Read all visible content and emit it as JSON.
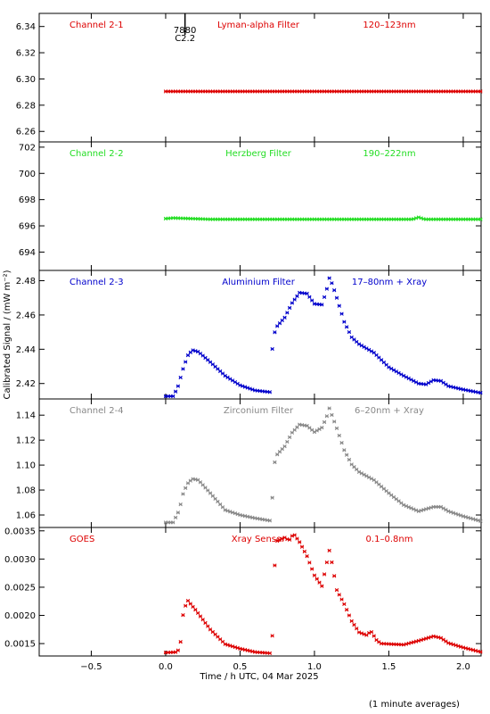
{
  "chart_data": {
    "type": "scatter",
    "xlabel": "Time / h UTC, 04 Mar 2025",
    "ylabel": "Calibrated Signal / (mW m⁻²)",
    "footnote": "(1 minute averages)",
    "xlim": [
      -0.85,
      2.12
    ],
    "xticks": [
      -0.5,
      0.0,
      0.5,
      1.0,
      1.5,
      2.0
    ],
    "xtick_labels": [
      "−0.5",
      "0.0",
      "0.5",
      "1.0",
      "1.5",
      "2.0"
    ],
    "marker_annotation": {
      "x": 0.13,
      "lines": [
        "7880",
        "C2.2"
      ]
    },
    "panels": [
      {
        "channel": "Channel 2-1",
        "filter": "Lyman-alpha Filter",
        "band": "120–123nm",
        "color": "#dd0000",
        "ylim": [
          6.252,
          6.35
        ],
        "yticks": [
          6.26,
          6.28,
          6.3,
          6.32,
          6.34
        ],
        "ytick_labels": [
          "6.26",
          "6.28",
          "6.30",
          "6.32",
          "6.34"
        ],
        "series": [
          [
            0.0,
            6.2905
          ],
          [
            0.5,
            6.2905
          ],
          [
            1.0,
            6.2905
          ],
          [
            1.5,
            6.2905
          ],
          [
            2.12,
            6.2905
          ]
        ]
      },
      {
        "channel": "Channel 2-2",
        "filter": "Herzberg Filter",
        "band": "190–222nm",
        "color": "#22dd22",
        "ylim": [
          692.6,
          702.4
        ],
        "yticks": [
          694,
          696,
          698,
          700,
          702
        ],
        "ytick_labels": [
          "694",
          "696",
          "698",
          "700",
          "702"
        ],
        "series": [
          [
            0.0,
            696.55
          ],
          [
            0.05,
            696.6
          ],
          [
            0.3,
            696.5
          ],
          [
            1.0,
            696.5
          ],
          [
            1.66,
            696.5
          ],
          [
            1.7,
            696.65
          ],
          [
            1.74,
            696.5
          ],
          [
            2.12,
            696.5
          ]
        ]
      },
      {
        "channel": "Channel 2-3",
        "filter": "Aluminium Filter",
        "band": "17–80nm + Xray",
        "color": "#0000cc",
        "ylim": [
          2.411,
          2.486
        ],
        "yticks": [
          2.42,
          2.44,
          2.46,
          2.48
        ],
        "ytick_labels": [
          "2.42",
          "2.44",
          "2.46",
          "2.48"
        ],
        "series": [
          [
            0.0,
            2.4126
          ],
          [
            0.05,
            2.4126
          ],
          [
            0.08,
            2.4175
          ],
          [
            0.12,
            2.4295
          ],
          [
            0.15,
            2.4365
          ],
          [
            0.18,
            2.4395
          ],
          [
            0.22,
            2.4385
          ],
          [
            0.3,
            2.4325
          ],
          [
            0.4,
            2.4245
          ],
          [
            0.5,
            2.419
          ],
          [
            0.6,
            2.416
          ],
          [
            0.7,
            2.415
          ],
          [
            0.71,
            2.4265
          ],
          [
            0.72,
            2.447
          ],
          [
            0.75,
            2.4535
          ],
          [
            0.8,
            2.4585
          ],
          [
            0.85,
            2.467
          ],
          [
            0.9,
            2.473
          ],
          [
            0.95,
            2.4725
          ],
          [
            1.0,
            2.4665
          ],
          [
            1.05,
            2.466
          ],
          [
            1.08,
            2.474
          ],
          [
            1.1,
            2.4815
          ],
          [
            1.12,
            2.478
          ],
          [
            1.15,
            2.47
          ],
          [
            1.2,
            2.456
          ],
          [
            1.25,
            2.447
          ],
          [
            1.3,
            2.443
          ],
          [
            1.4,
            2.438
          ],
          [
            1.5,
            2.4295
          ],
          [
            1.6,
            2.4245
          ],
          [
            1.7,
            2.42
          ],
          [
            1.75,
            2.4195
          ],
          [
            1.8,
            2.422
          ],
          [
            1.85,
            2.4215
          ],
          [
            1.9,
            2.4185
          ],
          [
            2.0,
            2.4165
          ],
          [
            2.12,
            2.4145
          ]
        ]
      },
      {
        "channel": "Channel 2-4",
        "filter": "Zirconium Filter",
        "band": "6–20nm + Xray",
        "color": "#888888",
        "ylim": [
          1.05,
          1.153
        ],
        "yticks": [
          1.06,
          1.08,
          1.1,
          1.12,
          1.14
        ],
        "ytick_labels": [
          "1.06",
          "1.08",
          "1.10",
          "1.12",
          "1.14"
        ],
        "series": [
          [
            0.0,
            1.054
          ],
          [
            0.05,
            1.054
          ],
          [
            0.09,
            1.0635
          ],
          [
            0.12,
            1.0785
          ],
          [
            0.15,
            1.0855
          ],
          [
            0.18,
            1.089
          ],
          [
            0.22,
            1.088
          ],
          [
            0.3,
            1.0775
          ],
          [
            0.4,
            1.064
          ],
          [
            0.5,
            1.06
          ],
          [
            0.6,
            1.0575
          ],
          [
            0.7,
            1.0555
          ],
          [
            0.72,
            1.0775
          ],
          [
            0.73,
            1.101
          ],
          [
            0.75,
            1.1085
          ],
          [
            0.8,
            1.115
          ],
          [
            0.85,
            1.126
          ],
          [
            0.9,
            1.1325
          ],
          [
            0.95,
            1.1315
          ],
          [
            1.0,
            1.1265
          ],
          [
            1.05,
            1.13
          ],
          [
            1.08,
            1.138
          ],
          [
            1.1,
            1.1455
          ],
          [
            1.15,
            1.1295
          ],
          [
            1.2,
            1.112
          ],
          [
            1.25,
            1.1005
          ],
          [
            1.3,
            1.0945
          ],
          [
            1.4,
            1.088
          ],
          [
            1.5,
            1.0775
          ],
          [
            1.6,
            1.068
          ],
          [
            1.7,
            1.063
          ],
          [
            1.8,
            1.0665
          ],
          [
            1.85,
            1.0665
          ],
          [
            1.9,
            1.063
          ],
          [
            2.0,
            1.059
          ],
          [
            2.12,
            1.055
          ]
        ]
      },
      {
        "channel": "GOES",
        "filter": "Xray Sensor",
        "band": "0.1–0.8nm",
        "color": "#dd0000",
        "ylim": [
          0.00128,
          0.00356
        ],
        "yticks": [
          0.0015,
          0.002,
          0.0025,
          0.003,
          0.0035
        ],
        "ytick_labels": [
          "0.0015",
          "0.0020",
          "0.0025",
          "0.0030",
          "0.0035"
        ],
        "series": [
          [
            0.0,
            0.00134
          ],
          [
            0.08,
            0.00135
          ],
          [
            0.1,
            0.00153
          ],
          [
            0.12,
            0.0021
          ],
          [
            0.15,
            0.00226
          ],
          [
            0.2,
            0.0021
          ],
          [
            0.3,
            0.00175
          ],
          [
            0.4,
            0.00149
          ],
          [
            0.5,
            0.00141
          ],
          [
            0.6,
            0.00135
          ],
          [
            0.7,
            0.00133
          ],
          [
            0.72,
            0.0017
          ],
          [
            0.73,
            0.0028
          ],
          [
            0.75,
            0.00332
          ],
          [
            0.8,
            0.00338
          ],
          [
            0.83,
            0.00333
          ],
          [
            0.86,
            0.00345
          ],
          [
            0.9,
            0.0033
          ],
          [
            0.95,
            0.00305
          ],
          [
            1.0,
            0.00271
          ],
          [
            1.05,
            0.00252
          ],
          [
            1.1,
            0.00315
          ],
          [
            1.12,
            0.0029
          ],
          [
            1.15,
            0.00245
          ],
          [
            1.2,
            0.0022
          ],
          [
            1.25,
            0.0019
          ],
          [
            1.3,
            0.0017
          ],
          [
            1.35,
            0.00165
          ],
          [
            1.38,
            0.00172
          ],
          [
            1.42,
            0.00155
          ],
          [
            1.45,
            0.0015
          ],
          [
            1.6,
            0.00148
          ],
          [
            1.7,
            0.00155
          ],
          [
            1.8,
            0.00163
          ],
          [
            1.85,
            0.0016
          ],
          [
            1.9,
            0.00151
          ],
          [
            2.0,
            0.00143
          ],
          [
            2.12,
            0.00135
          ]
        ]
      }
    ]
  }
}
